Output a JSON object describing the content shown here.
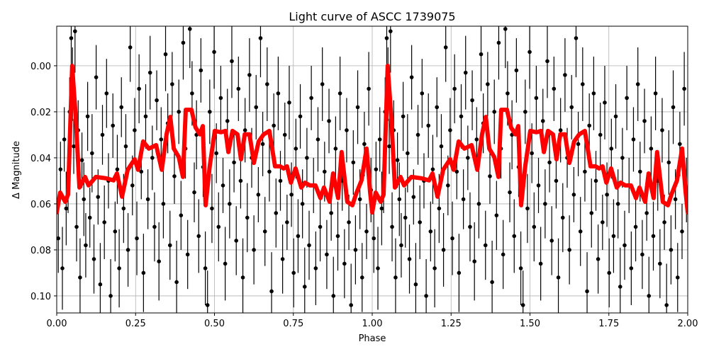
{
  "chart_data": {
    "type": "scatter",
    "title": "Light curve of ASCC 1739075",
    "xlabel": "Phase",
    "ylabel": "Δ Magnitude",
    "xlim": [
      0,
      2
    ],
    "ylim": [
      -0.0172,
      0.1074
    ],
    "y_inverted": true,
    "grid": true,
    "folded_cycles_shown": 2,
    "xticks": [
      "0.00",
      "0.25",
      "0.50",
      "0.75",
      "1.00",
      "1.25",
      "1.50",
      "1.75",
      "2.00"
    ],
    "yticks": [
      "0.00",
      "0.02",
      "0.04",
      "0.06",
      "0.08",
      "0.10"
    ],
    "colors": {
      "points": "#000000",
      "model": "#ff0000",
      "grid": "#b0b0b0"
    },
    "observations": {
      "points": [
        [
          0.005,
          0.075,
          0.015
        ],
        [
          0.012,
          0.045,
          0.012
        ],
        [
          0.018,
          0.088,
          0.018
        ],
        [
          0.024,
          0.032,
          0.014
        ],
        [
          0.03,
          0.062,
          0.016
        ],
        [
          0.036,
          0.051,
          0.013
        ],
        [
          0.041,
          0.02,
          0.015
        ],
        [
          0.046,
          -0.012,
          0.014
        ],
        [
          0.05,
          0.008,
          0.016
        ],
        [
          0.054,
          0.035,
          0.012
        ],
        [
          0.058,
          -0.015,
          0.018
        ],
        [
          0.063,
          0.07,
          0.015
        ],
        [
          0.068,
          0.028,
          0.013
        ],
        [
          0.074,
          0.092,
          0.017
        ],
        [
          0.08,
          0.041,
          0.012
        ],
        [
          0.086,
          0.058,
          0.016
        ],
        [
          0.092,
          0.078,
          0.014
        ],
        [
          0.098,
          0.022,
          0.015
        ],
        [
          0.105,
          0.066,
          0.013
        ],
        [
          0.112,
          0.038,
          0.017
        ],
        [
          0.118,
          0.084,
          0.015
        ],
        [
          0.125,
          0.005,
          0.014
        ],
        [
          0.131,
          0.057,
          0.012
        ],
        [
          0.138,
          0.095,
          0.018
        ],
        [
          0.145,
          0.03,
          0.013
        ],
        [
          0.151,
          0.068,
          0.016
        ],
        [
          0.158,
          0.012,
          0.015
        ],
        [
          0.164,
          0.05,
          0.012
        ],
        [
          0.171,
          0.1,
          0.016
        ],
        [
          0.178,
          0.026,
          0.014
        ],
        [
          0.185,
          0.072,
          0.013
        ],
        [
          0.192,
          0.045,
          0.015
        ],
        [
          0.198,
          0.088,
          0.017
        ],
        [
          0.205,
          0.018,
          0.013
        ],
        [
          0.212,
          0.062,
          0.015
        ],
        [
          0.219,
          0.035,
          0.014
        ],
        [
          0.226,
          0.08,
          0.016
        ],
        [
          0.233,
          -0.008,
          0.015
        ],
        [
          0.24,
          0.052,
          0.013
        ],
        [
          0.247,
          0.028,
          0.014
        ],
        [
          0.254,
          0.075,
          0.016
        ],
        [
          0.261,
          0.01,
          0.015
        ],
        [
          0.268,
          0.046,
          0.012
        ],
        [
          0.275,
          0.09,
          0.017
        ],
        [
          0.282,
          0.022,
          0.014
        ],
        [
          0.289,
          0.058,
          0.013
        ],
        [
          0.296,
          0.003,
          0.016
        ],
        [
          0.303,
          0.04,
          0.014
        ],
        [
          0.31,
          0.07,
          0.015
        ],
        [
          0.317,
          0.015,
          0.013
        ],
        [
          0.324,
          0.085,
          0.017
        ],
        [
          0.331,
          0.032,
          0.014
        ],
        [
          0.338,
          0.06,
          0.015
        ],
        [
          0.345,
          -0.005,
          0.016
        ],
        [
          0.352,
          0.025,
          0.013
        ],
        [
          0.359,
          0.078,
          0.015
        ],
        [
          0.366,
          0.008,
          0.014
        ],
        [
          0.373,
          0.048,
          0.012
        ],
        [
          0.38,
          0.094,
          0.018
        ],
        [
          0.387,
          0.02,
          0.014
        ],
        [
          0.394,
          0.065,
          0.015
        ],
        [
          0.401,
          -0.01,
          0.016
        ],
        [
          0.408,
          0.036,
          0.013
        ],
        [
          0.415,
          0.082,
          0.015
        ],
        [
          0.422,
          -0.016,
          0.017
        ],
        [
          0.429,
          0.012,
          0.014
        ],
        [
          0.436,
          0.055,
          0.013
        ],
        [
          0.443,
          0.03,
          0.015
        ],
        [
          0.45,
          0.074,
          0.016
        ],
        [
          0.457,
          0.002,
          0.014
        ],
        [
          0.464,
          0.044,
          0.013
        ],
        [
          0.471,
          0.088,
          0.016
        ],
        [
          0.478,
          0.104,
          0.015
        ],
        [
          0.485,
          0.02,
          0.014
        ],
        [
          0.492,
          0.062,
          0.015
        ],
        [
          0.499,
          -0.006,
          0.016
        ],
        [
          0.506,
          0.038,
          0.013
        ],
        [
          0.513,
          0.07,
          0.015
        ],
        [
          0.52,
          0.014,
          0.014
        ],
        [
          0.527,
          0.052,
          0.012
        ],
        [
          0.534,
          0.086,
          0.016
        ],
        [
          0.541,
          0.024,
          0.014
        ],
        [
          0.548,
          0.06,
          0.015
        ],
        [
          0.555,
          -0.002,
          0.016
        ],
        [
          0.562,
          0.042,
          0.013
        ],
        [
          0.569,
          0.076,
          0.015
        ],
        [
          0.576,
          0.01,
          0.014
        ],
        [
          0.583,
          0.05,
          0.012
        ],
        [
          0.59,
          0.092,
          0.017
        ],
        [
          0.597,
          0.028,
          0.014
        ],
        [
          0.604,
          0.066,
          0.015
        ],
        [
          0.611,
          0.004,
          0.016
        ],
        [
          0.618,
          0.04,
          0.013
        ],
        [
          0.625,
          0.08,
          0.015
        ],
        [
          0.632,
          0.018,
          0.014
        ],
        [
          0.639,
          0.056,
          0.012
        ],
        [
          0.646,
          -0.012,
          0.017
        ],
        [
          0.653,
          0.034,
          0.014
        ],
        [
          0.66,
          0.072,
          0.015
        ],
        [
          0.667,
          0.008,
          0.016
        ],
        [
          0.674,
          0.046,
          0.013
        ],
        [
          0.681,
          0.098,
          0.017
        ],
        [
          0.688,
          0.026,
          0.014
        ],
        [
          0.695,
          0.064,
          0.015
        ],
        [
          0.702,
          0.012,
          0.016
        ],
        [
          0.709,
          0.05,
          0.013
        ],
        [
          0.716,
          0.084,
          0.015
        ],
        [
          0.723,
          0.03,
          0.014
        ],
        [
          0.73,
          0.068,
          0.012
        ],
        [
          0.737,
          0.016,
          0.016
        ],
        [
          0.744,
          0.056,
          0.014
        ],
        [
          0.751,
          0.09,
          0.015
        ],
        [
          0.758,
          0.036,
          0.013
        ],
        [
          0.765,
          0.074,
          0.016
        ],
        [
          0.772,
          0.022,
          0.014
        ],
        [
          0.779,
          0.06,
          0.015
        ],
        [
          0.786,
          0.096,
          0.017
        ],
        [
          0.793,
          0.04,
          0.013
        ],
        [
          0.8,
          0.078,
          0.015
        ],
        [
          0.807,
          0.014,
          0.014
        ],
        [
          0.814,
          0.052,
          0.012
        ],
        [
          0.821,
          0.088,
          0.016
        ],
        [
          0.828,
          0.032,
          0.014
        ],
        [
          0.835,
          0.07,
          0.015
        ],
        [
          0.842,
          0.008,
          0.016
        ],
        [
          0.849,
          0.046,
          0.013
        ],
        [
          0.856,
          0.082,
          0.015
        ],
        [
          0.863,
          0.024,
          0.014
        ],
        [
          0.87,
          0.064,
          0.012
        ],
        [
          0.877,
          0.1,
          0.017
        ],
        [
          0.884,
          0.036,
          0.014
        ],
        [
          0.891,
          0.074,
          0.015
        ],
        [
          0.898,
          0.012,
          0.016
        ],
        [
          0.905,
          0.05,
          0.013
        ],
        [
          0.912,
          0.086,
          0.015
        ],
        [
          0.919,
          0.028,
          0.014
        ],
        [
          0.926,
          0.068,
          0.012
        ],
        [
          0.933,
          0.104,
          0.018
        ],
        [
          0.94,
          0.042,
          0.014
        ],
        [
          0.947,
          0.08,
          0.015
        ],
        [
          0.954,
          0.018,
          0.016
        ],
        [
          0.961,
          0.058,
          0.013
        ],
        [
          0.968,
          0.092,
          0.015
        ],
        [
          0.975,
          0.034,
          0.014
        ],
        [
          0.982,
          0.072,
          0.012
        ],
        [
          0.989,
          0.01,
          0.016
        ],
        [
          0.996,
          0.054,
          0.014
        ]
      ]
    },
    "model_curve": {
      "x": [
        0.0,
        0.011,
        0.027,
        0.036,
        0.049,
        0.061,
        0.072,
        0.09,
        0.101,
        0.124,
        0.157,
        0.18,
        0.191,
        0.207,
        0.225,
        0.247,
        0.258,
        0.274,
        0.292,
        0.315,
        0.333,
        0.348,
        0.36,
        0.371,
        0.387,
        0.4,
        0.409,
        0.427,
        0.44,
        0.454,
        0.463,
        0.472,
        0.485,
        0.501,
        0.521,
        0.535,
        0.544,
        0.557,
        0.573,
        0.584,
        0.596,
        0.611,
        0.625,
        0.64,
        0.656,
        0.674,
        0.692,
        0.708,
        0.719,
        0.73,
        0.742,
        0.757,
        0.775,
        0.787,
        0.802,
        0.82,
        0.836,
        0.847,
        0.865,
        0.876,
        0.892,
        0.903,
        0.921,
        0.937,
        0.948,
        0.966,
        0.982,
        0.993,
        1.0
      ],
      "y": [
        0.0637,
        0.0551,
        0.0591,
        0.056,
        0.0,
        0.0237,
        0.0529,
        0.0483,
        0.052,
        0.0483,
        0.0489,
        0.0498,
        0.0468,
        0.0569,
        0.0452,
        0.0406,
        0.0452,
        0.0329,
        0.036,
        0.0345,
        0.0452,
        0.0298,
        0.0222,
        0.036,
        0.0397,
        0.0483,
        0.0191,
        0.0191,
        0.0268,
        0.0298,
        0.0262,
        0.0606,
        0.0437,
        0.0283,
        0.0289,
        0.0283,
        0.0375,
        0.0283,
        0.0298,
        0.0406,
        0.0298,
        0.0298,
        0.0422,
        0.0329,
        0.0298,
        0.0283,
        0.0437,
        0.0437,
        0.0446,
        0.0437,
        0.0508,
        0.0446,
        0.0529,
        0.0508,
        0.052,
        0.052,
        0.0575,
        0.0529,
        0.0591,
        0.0468,
        0.0575,
        0.0375,
        0.0591,
        0.0606,
        0.056,
        0.0498,
        0.036,
        0.0545,
        0.0637
      ]
    }
  }
}
